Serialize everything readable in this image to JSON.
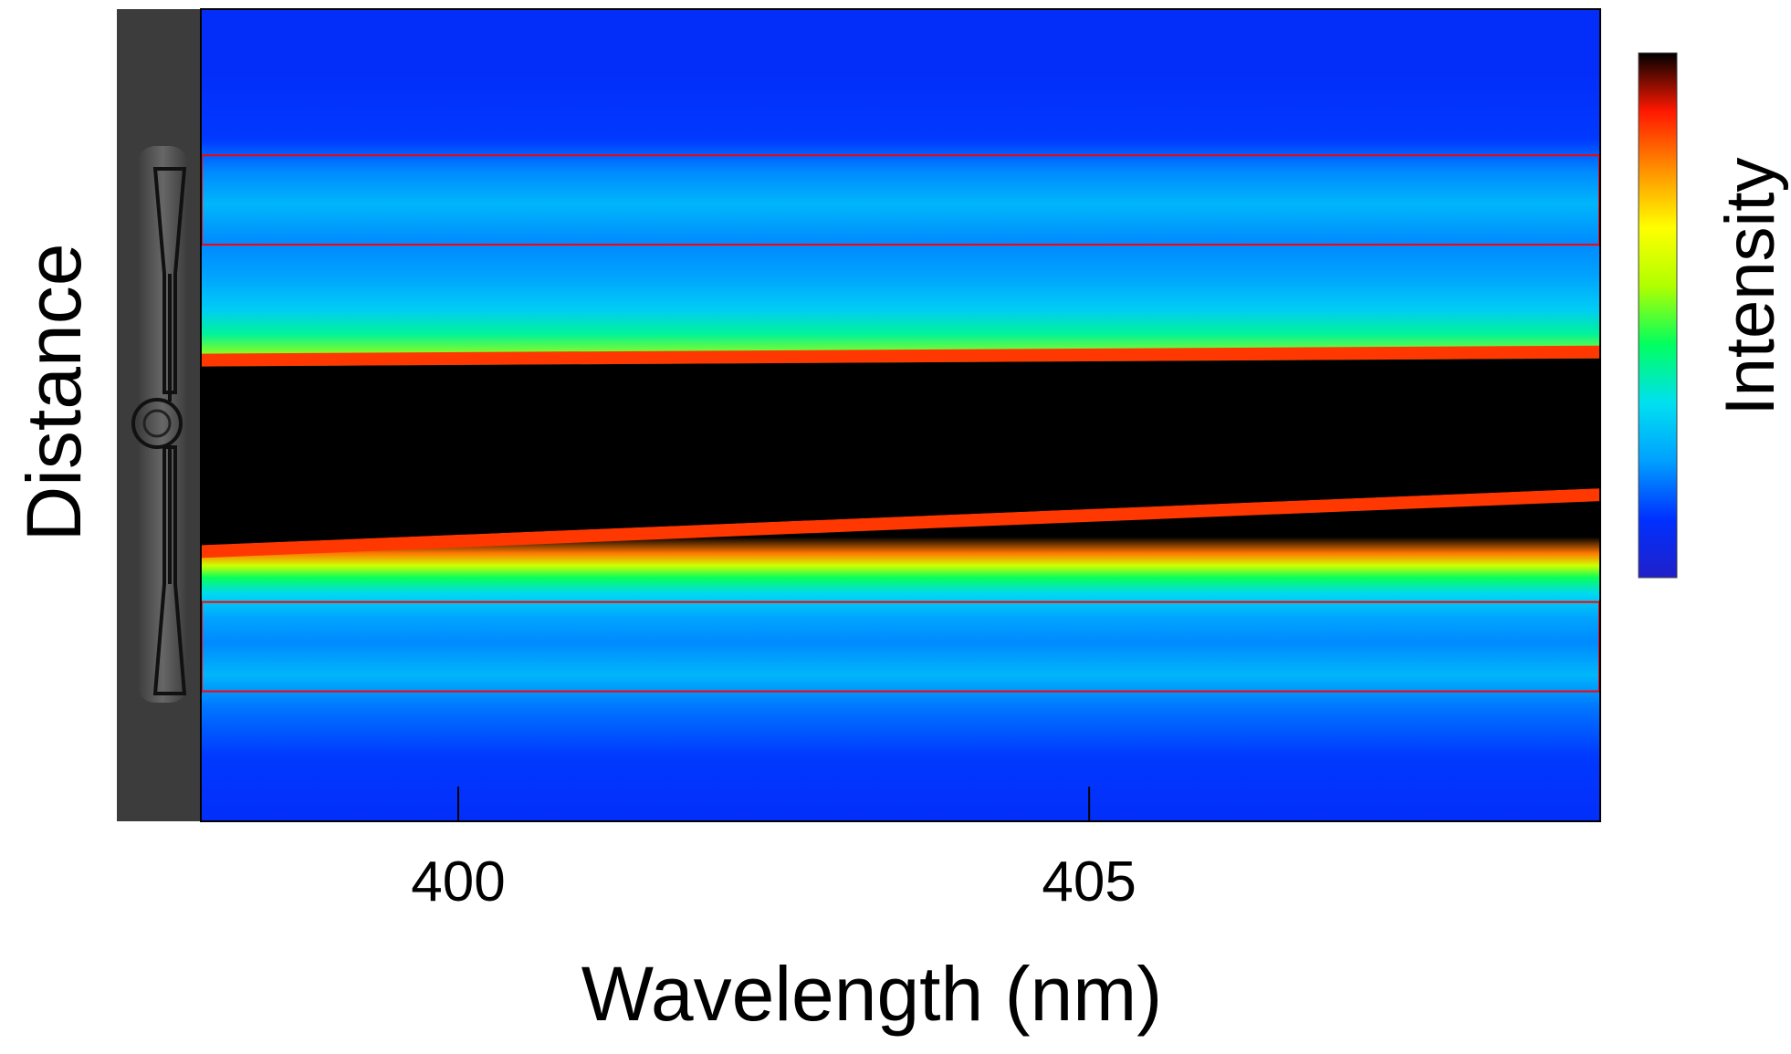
{
  "chart_data": {
    "type": "heatmap",
    "title": "",
    "xlabel": "Wavelength (nm)",
    "ylabel": "Distance",
    "colorbar_label": "Intensity",
    "xlim": [
      397.96,
      409.05
    ],
    "x_ticks": [
      400,
      405
    ],
    "x_tick_labels": [
      "400",
      "405"
    ],
    "ylim": [
      0,
      1
    ],
    "y_ticks": [],
    "legend": "none",
    "grid": false,
    "colormap": [
      "#2020c8",
      "#0030ff",
      "#00a0ff",
      "#00e0f0",
      "#00ff60",
      "#b0ff00",
      "#ffff00",
      "#ff9000",
      "#ff1800",
      "#000000"
    ],
    "intensity_profile": [
      {
        "distance": 0.0,
        "intensity": 0.1
      },
      {
        "distance": 0.08,
        "intensity": 0.1
      },
      {
        "distance": 0.16,
        "intensity": 0.12
      },
      {
        "distance": 0.2,
        "intensity": 0.2
      },
      {
        "distance": 0.24,
        "intensity": 0.26
      },
      {
        "distance": 0.29,
        "intensity": 0.2
      },
      {
        "distance": 0.33,
        "intensity": 0.23
      },
      {
        "distance": 0.37,
        "intensity": 0.3
      },
      {
        "distance": 0.4,
        "intensity": 0.4
      },
      {
        "distance": 0.43,
        "intensity": 0.55
      },
      {
        "distance": 0.455,
        "intensity": 0.78
      },
      {
        "distance": 0.47,
        "intensity": 1.0
      },
      {
        "distance": 0.55,
        "intensity": 1.0
      },
      {
        "distance": 0.65,
        "intensity": 1.0
      },
      {
        "distance": 0.67,
        "intensity": 0.8
      },
      {
        "distance": 0.685,
        "intensity": 0.6
      },
      {
        "distance": 0.7,
        "intensity": 0.45
      },
      {
        "distance": 0.72,
        "intensity": 0.32
      },
      {
        "distance": 0.75,
        "intensity": 0.23
      },
      {
        "distance": 0.78,
        "intensity": 0.2
      },
      {
        "distance": 0.82,
        "intensity": 0.26
      },
      {
        "distance": 0.86,
        "intensity": 0.18
      },
      {
        "distance": 0.92,
        "intensity": 0.12
      },
      {
        "distance": 1.0,
        "intensity": 0.1
      }
    ],
    "saturated_region": {
      "distance_top_start": 0.44,
      "distance_top_end": 0.43,
      "distance_bottom_start": 0.59,
      "distance_bottom_end": 0.66,
      "colour": "#000000"
    },
    "regions_of_interest": [
      {
        "name": "upper-roi",
        "distance_range": [
          0.18,
          0.29
        ],
        "color": "#ff0000"
      },
      {
        "name": "lower-roi",
        "distance_range": [
          0.73,
          0.84
        ],
        "color": "#ff0000"
      }
    ],
    "inset": {
      "description": "microscope image of device",
      "colour": "#404040"
    }
  }
}
